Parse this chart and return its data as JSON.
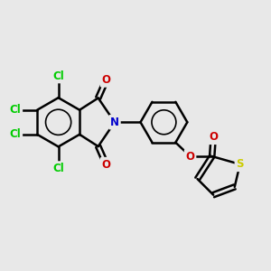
{
  "bg_color": "#e8e8e8",
  "bond_color": "#000000",
  "bond_width": 1.8,
  "atom_colors": {
    "C": "#000000",
    "Cl": "#00cc00",
    "N": "#0000cc",
    "O": "#cc0000",
    "S": "#cccc00"
  },
  "font_size": 8.5,
  "fig_width": 3.0,
  "fig_height": 3.0,
  "dpi": 100
}
